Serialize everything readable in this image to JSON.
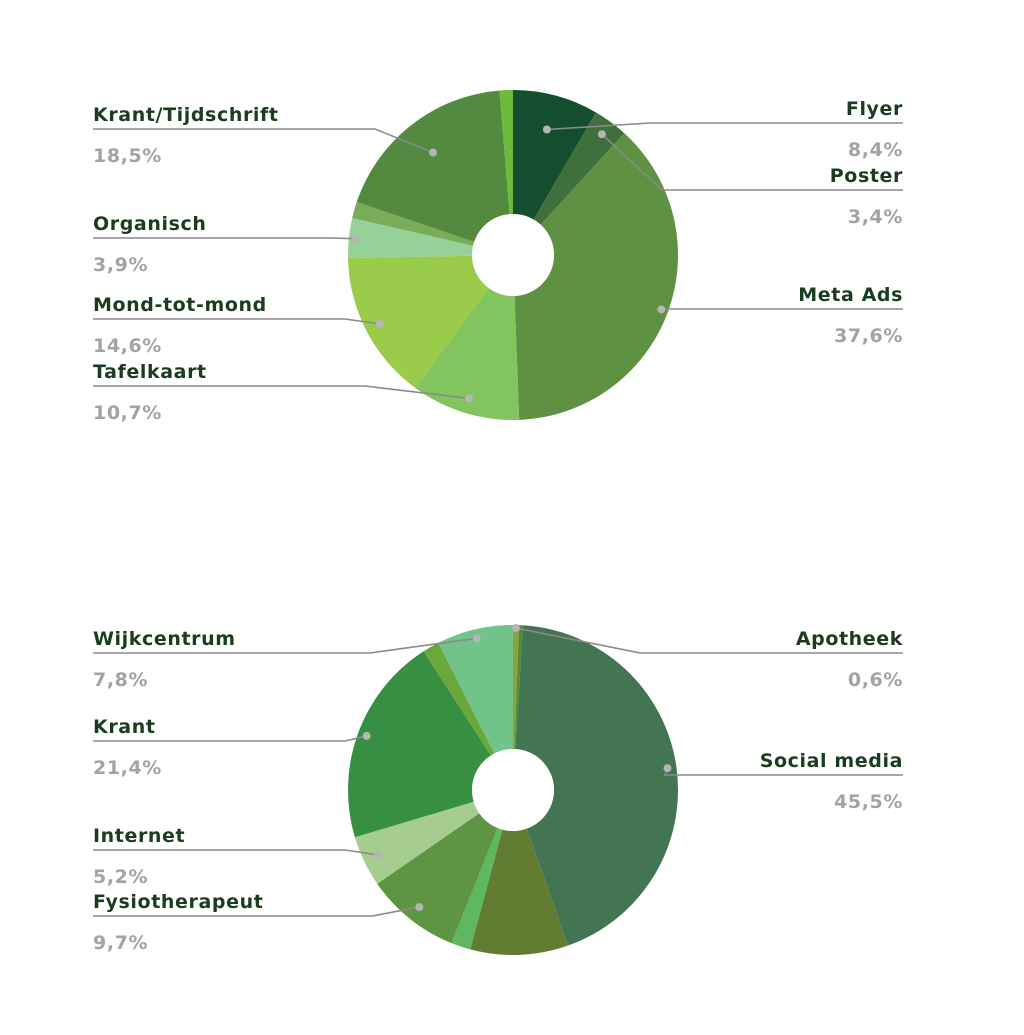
{
  "chart_data": [
    {
      "type": "pie",
      "donut": true,
      "slices": [
        {
          "label": "Flyer",
          "value": 8.4,
          "display": "8,4%",
          "color": "#134f2e"
        },
        {
          "label": "Poster",
          "value": 3.4,
          "display": "3,4%",
          "color": "#3f6f3a"
        },
        {
          "label": "Meta Ads",
          "value": 37.6,
          "display": "37,6%",
          "color": "#5e9142"
        },
        {
          "label": "Tafelkaart",
          "value": 10.7,
          "display": "10,7%",
          "color": "#82c45e"
        },
        {
          "label": "Mond-tot-mond",
          "value": 14.6,
          "display": "14,6%",
          "color": "#9acb4b"
        },
        {
          "label": "Organisch",
          "value": 3.9,
          "display": "3,9%",
          "color": "#98d198"
        },
        {
          "label": "",
          "value": 1.6,
          "display": "",
          "color": "#7aab58"
        },
        {
          "label": "Krant/Tijdschrift",
          "value": 18.5,
          "display": "18,5%",
          "color": "#538a3f"
        },
        {
          "label": "",
          "value": 1.3,
          "display": "",
          "color": "#6dbb3a"
        }
      ]
    },
    {
      "type": "pie",
      "donut": true,
      "slices": [
        {
          "label": "Apotheek",
          "value": 0.6,
          "display": "0,6%",
          "color": "#8ca23a"
        },
        {
          "label": "",
          "value": 0.4,
          "display": "",
          "color": "#4f8e35"
        },
        {
          "label": "Social media",
          "value": 45.5,
          "display": "45,5%",
          "color": "#437553"
        },
        {
          "label": "",
          "value": 10.0,
          "display": "",
          "color": "#627c31"
        },
        {
          "label": "",
          "value": 2.0,
          "display": "",
          "color": "#5fb860"
        },
        {
          "label": "Fysiotherapeut",
          "value": 9.7,
          "display": "9,7%",
          "color": "#5d9543"
        },
        {
          "label": "Internet",
          "value": 5.2,
          "display": "5,2%",
          "color": "#a6cc90"
        },
        {
          "label": "Krant",
          "value": 21.4,
          "display": "21,4%",
          "color": "#378f43"
        },
        {
          "label": "",
          "value": 1.7,
          "display": "",
          "color": "#6aa83c"
        },
        {
          "label": "Wijkcentrum",
          "value": 7.8,
          "display": "7,8%",
          "color": "#72c389"
        }
      ]
    }
  ]
}
